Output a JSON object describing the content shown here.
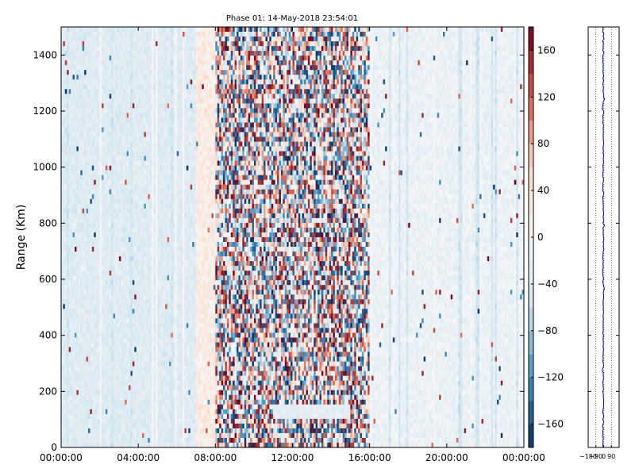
{
  "chart_data": [
    {
      "type": "heatmap",
      "title": "Phase 01: 14-May-2018 23:54:01",
      "xlabel": "",
      "ylabel": "Range (Km)",
      "x_range": [
        "00:00:00",
        "00:00:00"
      ],
      "x_ticks": [
        "00:00:00",
        "04:00:00",
        "08:00:00",
        "12:00:00",
        "16:00:00",
        "20:00:00",
        "00:00:00"
      ],
      "ylim": [
        0,
        1500
      ],
      "y_ticks": [
        0,
        200,
        400,
        600,
        800,
        1000,
        1200,
        1400
      ],
      "value_description": "phase in degrees; strongly noisy between 08:00:00 and 16:00:00, weakly positive 07:00:00–09:00:00, weakly negative elsewhere",
      "colorbar": {
        "colormap": "RdBu_r (blue negative, white zero, red positive)",
        "range": [
          -180,
          180
        ],
        "ticks": [
          -160,
          -120,
          -80,
          -40,
          0,
          40,
          80,
          120,
          160
        ]
      },
      "noisy_hours": [
        8,
        16
      ],
      "positive_band_hours": [
        7,
        9
      ],
      "quiet_range_band_km": [
        100,
        160
      ]
    },
    {
      "type": "line",
      "title": "",
      "xlabel": "",
      "ylabel": "",
      "xlim": [
        -180,
        180
      ],
      "x_ticks": [
        "-180",
        "-90",
        "0",
        "90"
      ],
      "ylim": [
        0,
        1500
      ],
      "gridlines_x": [
        -90,
        0,
        90
      ],
      "series": [
        {
          "color": "#0000cc",
          "mean": -5,
          "jitter": 6
        }
      ]
    }
  ],
  "colors": {
    "neg_strong": "#053061",
    "neg_mid": "#4393c3",
    "neg_light": "#d1e5f0",
    "white": "#f7f7f7",
    "pos_light": "#fddbc7",
    "pos_mid": "#d6604d",
    "pos_strong": "#67001f",
    "profile_line": "#0000cc"
  }
}
